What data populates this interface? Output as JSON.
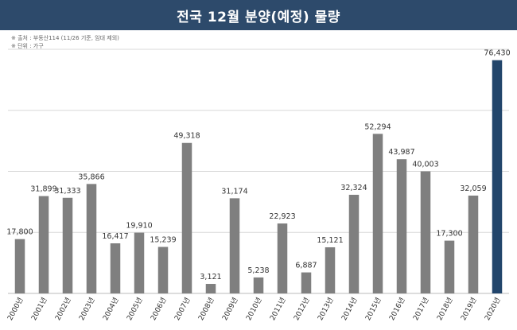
{
  "header": {
    "title": "전국 12월 분양(예정) 물량"
  },
  "notes": {
    "source": "※ 출처 : 부동산114 (11/26 기준, 임대 제외)",
    "unit": "※ 단위 : 가구"
  },
  "colors": {
    "title_bg": "#2d4a6b",
    "bar": "#7f7f7f",
    "highlight_bar": "#22456b"
  },
  "chart_data": {
    "type": "bar",
    "title": "전국 12월 분양(예정) 물량",
    "xlabel": "",
    "ylabel": "",
    "unit": "가구",
    "categories": [
      "2000년",
      "2001년",
      "2002년",
      "2003년",
      "2004년",
      "2005년",
      "2006년",
      "2007년",
      "2008년",
      "2009년",
      "2010년",
      "2011년",
      "2012년",
      "2013년",
      "2014년",
      "2015년",
      "2016년",
      "2017년",
      "2018년",
      "2019년",
      "2020년"
    ],
    "values": [
      17800,
      31899,
      31333,
      35866,
      16417,
      19910,
      15239,
      49318,
      3121,
      31174,
      5238,
      22923,
      6887,
      15121,
      32324,
      52294,
      43987,
      40003,
      17300,
      32059,
      76430
    ],
    "value_labels": [
      "17,800",
      "31,899",
      "31,333",
      "35,866",
      "16,417",
      "19,910",
      "15,239",
      "49,318",
      "3,121",
      "31,174",
      "5,238",
      "22,923",
      "6,887",
      "15,121",
      "32,324",
      "52,294",
      "43,987",
      "40,003",
      "17,300",
      "32,059",
      "76,430"
    ],
    "highlight_index": 20,
    "ylim": [
      0,
      80000
    ],
    "grid": true,
    "legend": false
  }
}
